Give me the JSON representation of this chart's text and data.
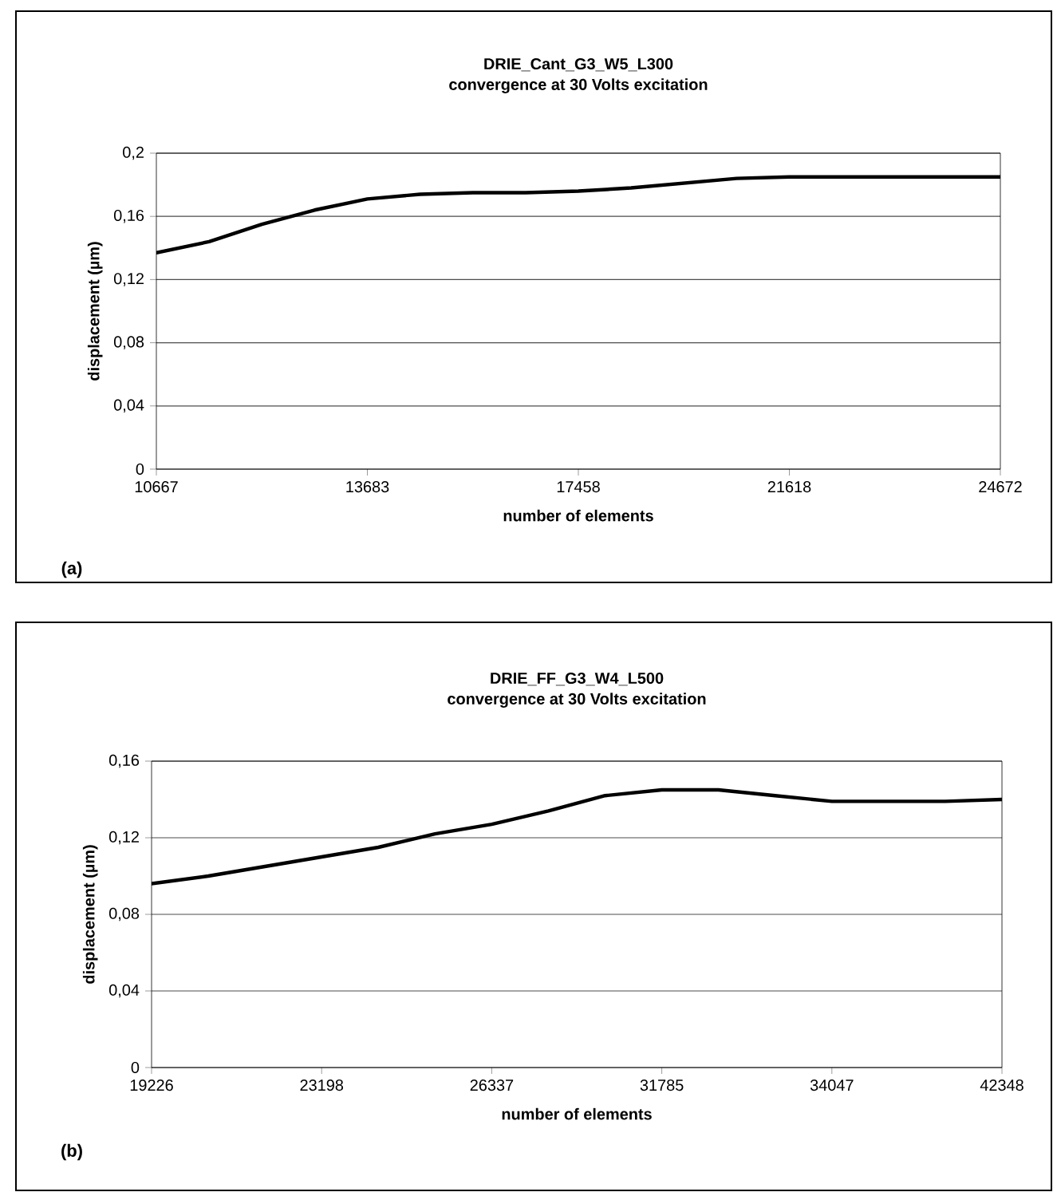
{
  "chart_data": [
    {
      "type": "line",
      "title": "DRIE_Cant_G3_W5_L300",
      "subtitle": "convergence at 30 Volts excitation",
      "xlabel": "number of elements",
      "ylabel": "displacement (µm)",
      "annotations": [
        "(a)"
      ],
      "categories": [
        "10667",
        null,
        null,
        null,
        "13683",
        null,
        null,
        null,
        "17458",
        null,
        null,
        null,
        "21618",
        null,
        null,
        null,
        "24672"
      ],
      "series": [
        {
          "color": "#000000",
          "values": [
            0.137,
            0.144,
            0.155,
            0.164,
            0.171,
            0.174,
            0.175,
            0.175,
            0.176,
            0.178,
            0.181,
            0.184,
            0.185,
            0.185,
            0.185,
            0.185,
            0.185
          ]
        }
      ],
      "ylim": [
        0,
        0.2
      ],
      "yticks": [
        0,
        {
          "value": 0.04,
          "label": "0,04"
        },
        {
          "value": 0.08,
          "label": "0,08"
        },
        {
          "value": 0.12,
          "label": "0,12"
        },
        {
          "value": 0.16,
          "label": "0,16"
        },
        {
          "value": 0.2,
          "label": "0,2"
        }
      ],
      "grid": "y",
      "marker": "none",
      "line_style": "solid"
    },
    {
      "type": "line",
      "title": "DRIE_FF_G3_W4_L500",
      "subtitle": "convergence at 30 Volts excitation",
      "xlabel": "number of elements",
      "ylabel": "displacement (µm)",
      "annotations": [
        "(b)"
      ],
      "categories": [
        "19226",
        null,
        null,
        "23198",
        null,
        null,
        "26337",
        null,
        null,
        "31785",
        null,
        null,
        "34047",
        null,
        null,
        "42348"
      ],
      "series": [
        {
          "color": "#000000",
          "values": [
            0.096,
            0.1,
            0.105,
            0.11,
            0.115,
            0.122,
            0.127,
            0.134,
            0.142,
            0.145,
            0.145,
            0.142,
            0.139,
            0.139,
            0.139,
            0.14
          ]
        }
      ],
      "ylim": [
        0,
        0.16
      ],
      "yticks": [
        0,
        {
          "value": 0.04,
          "label": "0,04"
        },
        {
          "value": 0.08,
          "label": "0,08"
        },
        {
          "value": 0.12,
          "label": "0,12"
        },
        {
          "value": 0.16,
          "label": "0,16"
        }
      ],
      "grid": "y",
      "marker": "none",
      "line_style": "solid"
    }
  ]
}
